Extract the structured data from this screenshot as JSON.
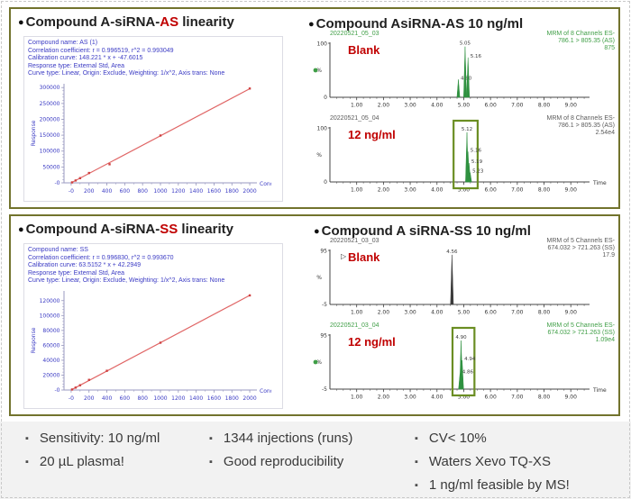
{
  "colors": {
    "panel_border": "#72732d",
    "highlight_red": "#c00000",
    "trace_green": "#2f9140",
    "annotation_green": "#3f9e46",
    "info_blue": "#3b3bc4",
    "fit_line_red": "#e06666",
    "footer_bg": "#f2f2f2"
  },
  "icons": {
    "bullet": "●",
    "cursor": "▷"
  },
  "panels": [
    {
      "left": {
        "title_pre": "Compound A-siRNA-",
        "title_highlight": "AS",
        "title_post": " linearity",
        "info_lines": [
          "Compound name: AS (1)",
          "Correlation coefficient: r = 0.996519, r^2 = 0.993049",
          "Calibration curve: 148.221 * x + -47.6015",
          "Response type: External Std, Area",
          "Curve type: Linear, Origin: Exclude, Weighting: 1/x^2, Axis trans: None"
        ]
      },
      "right": {
        "title_pre": "Compound AsiRNA-AS ",
        "title_bold": "10 ng/ml"
      }
    },
    {
      "left": {
        "title_pre": "Compound A-siRNA-",
        "title_highlight": "SS",
        "title_post": " linearity",
        "info_lines": [
          "Compound name: SS",
          "Correlation coefficient: r = 0.996830, r^2 = 0.993670",
          "Calibration curve: 63.5152 * x + 42.2949",
          "Response type: External Std, Area",
          "Curve type: Linear, Origin: Exclude, Weighting: 1/x^2, Axis trans: None"
        ]
      },
      "right": {
        "title_pre": "Compound A siRNA-SS ",
        "title_bold": "10 ng/ml"
      }
    }
  ],
  "bullets": {
    "col1": [
      "Sensitivity: 10 ng/ml",
      "20 µL plasma!"
    ],
    "col2": [
      "1344 injections (runs)",
      "Good reproducibility"
    ],
    "col3": [
      "CV< 10%",
      "Waters Xevo TQ-XS",
      "1 ng/ml feasible by MS!"
    ]
  },
  "chart_data": [
    {
      "id": "as-linearity",
      "type": "scatter",
      "title": "Compound A-siRNA-AS calibration",
      "xlabel": "Conc",
      "ylabel": "Response",
      "xlim": [
        0,
        2000
      ],
      "ylim": [
        0,
        300000
      ],
      "display_ymax": 312000,
      "xticks": [
        {
          "v": 0,
          "label": "-0"
        },
        {
          "v": 200,
          "label": "200"
        },
        {
          "v": 400,
          "label": "400"
        },
        {
          "v": 600,
          "label": "600"
        },
        {
          "v": 800,
          "label": "800"
        },
        {
          "v": 1000,
          "label": "1000"
        },
        {
          "v": 1200,
          "label": "1200"
        },
        {
          "v": 1400,
          "label": "1400"
        },
        {
          "v": 1600,
          "label": "1600"
        },
        {
          "v": 1800,
          "label": "1800"
        },
        {
          "v": 2000,
          "label": "2000"
        }
      ],
      "yticks": [
        {
          "v": 0,
          "label": "-0"
        },
        {
          "v": 50000,
          "label": "50000"
        },
        {
          "v": 100000,
          "label": "100000"
        },
        {
          "v": 150000,
          "label": "150000"
        },
        {
          "v": 200000,
          "label": "200000"
        },
        {
          "v": 250000,
          "label": "250000"
        },
        {
          "v": 300000,
          "label": "300000"
        }
      ],
      "fit": {
        "slope": 148.221,
        "intercept": -47.6015
      },
      "points": [
        [
          10,
          1400
        ],
        [
          50,
          7400
        ],
        [
          100,
          14800
        ],
        [
          200,
          31000
        ],
        [
          430,
          58500
        ],
        [
          1000,
          149000
        ],
        [
          2000,
          297000
        ]
      ],
      "line_color": "#e06666",
      "point_color": "#cf4040",
      "axis_color": "#9a9ac0",
      "tick_color": "#3b3bc4"
    },
    {
      "id": "ss-linearity",
      "type": "scatter",
      "title": "Compound A-siRNA-SS calibration",
      "xlabel": "Conc",
      "ylabel": "Response",
      "xlim": [
        0,
        2000
      ],
      "ylim": [
        0,
        120000
      ],
      "display_ymax": 133000,
      "xticks": [
        {
          "v": 0,
          "label": "-0"
        },
        {
          "v": 200,
          "label": "200"
        },
        {
          "v": 400,
          "label": "400"
        },
        {
          "v": 600,
          "label": "600"
        },
        {
          "v": 800,
          "label": "800"
        },
        {
          "v": 1000,
          "label": "1000"
        },
        {
          "v": 1200,
          "label": "1200"
        },
        {
          "v": 1400,
          "label": "1400"
        },
        {
          "v": 1600,
          "label": "1600"
        },
        {
          "v": 1800,
          "label": "1800"
        },
        {
          "v": 2000,
          "label": "2000"
        }
      ],
      "yticks": [
        {
          "v": 0,
          "label": "-0"
        },
        {
          "v": 20000,
          "label": "20000"
        },
        {
          "v": 40000,
          "label": "40000"
        },
        {
          "v": 60000,
          "label": "60000"
        },
        {
          "v": 80000,
          "label": "80000"
        },
        {
          "v": 100000,
          "label": "100000"
        },
        {
          "v": 120000,
          "label": "120000"
        }
      ],
      "fit": {
        "slope": 63.5152,
        "intercept": 42.2949
      },
      "points": [
        [
          10,
          680
        ],
        [
          50,
          3220
        ],
        [
          100,
          6400
        ],
        [
          200,
          13600
        ],
        [
          400,
          25800
        ],
        [
          1000,
          63500
        ],
        [
          2000,
          127000
        ]
      ],
      "line_color": "#e06666",
      "point_color": "#cf4040",
      "axis_color": "#9a9ac0",
      "tick_color": "#3b3bc4"
    },
    {
      "id": "as-blank",
      "type": "chromatogram",
      "run": "20220521_05_03",
      "run_color": "#3f9e46",
      "sample": "Blank",
      "y_top": "100",
      "y_bottom": "0",
      "percent_label": "%",
      "annotation": [
        "MRM of 8 Channels ES-",
        "786.1 > 805.35 (AS)",
        "875"
      ],
      "annotation_color": "#3f9e46",
      "trace_color": "#2f9140",
      "peaks": [
        {
          "t": 4.8,
          "h": 0.34,
          "label": "4.80"
        },
        {
          "t": 5.05,
          "h": 0.97,
          "label": "5.05"
        },
        {
          "t": 5.16,
          "h": 0.76,
          "label": "5.16"
        }
      ],
      "box": null,
      "time_label": "",
      "xtick_labels": [
        "1.00",
        "2.00",
        "3.00",
        "4.00",
        "5.00",
        "6.00",
        "7.00",
        "8.00",
        "9.00"
      ],
      "marker_dot": true,
      "cursor": false
    },
    {
      "id": "as-12",
      "type": "chromatogram",
      "run": "20220521_05_04",
      "run_color": "#5a5a5a",
      "sample": "12 ng/ml",
      "y_top": "100",
      "y_bottom": "0",
      "percent_label": "%",
      "annotation": [
        "MRM of 8 Channels ES-",
        "786.1 > 805.35 (AS)",
        "2.54e4"
      ],
      "annotation_color": "#5a5a5a",
      "trace_color": "#2f9140",
      "peaks": [
        {
          "t": 5.12,
          "h": 0.95,
          "label": "5.12"
        },
        {
          "t": 5.16,
          "h": 0.58,
          "label": "5.16"
        },
        {
          "t": 5.2,
          "h": 0.36,
          "label": "5.19"
        },
        {
          "t": 5.24,
          "h": 0.18,
          "label": "5.23"
        }
      ],
      "box": [
        4.62,
        5.52
      ],
      "time_label": "Time",
      "xtick_labels": [
        "1.00",
        "2.00",
        "3.00",
        "4.00",
        "5.00",
        "6.00",
        "7.00",
        "8.00",
        "9.00"
      ],
      "marker_dot": false,
      "cursor": false
    },
    {
      "id": "ss-blank",
      "type": "chromatogram",
      "run": "20220521_03_03",
      "run_color": "#5a5a5a",
      "sample": "Blank",
      "y_top": "95",
      "y_bottom": "-5",
      "percent_label": "%",
      "annotation": [
        "MRM of 5 Channels ES-",
        "674.032 > 721.263 (SS)",
        "17.9"
      ],
      "annotation_color": "#5a5a5a",
      "trace_color": "#3a3a3a",
      "peaks": [
        {
          "t": 4.56,
          "h": 0.95,
          "label": "4.56"
        }
      ],
      "box": null,
      "time_label": "",
      "xtick_labels": [
        "1.00",
        "2.00",
        "3.00",
        "4.00",
        "5.00",
        "6.00",
        "7.00",
        "8.00",
        "9.00"
      ],
      "marker_dot": false,
      "cursor": true
    },
    {
      "id": "ss-12",
      "type": "chromatogram",
      "run": "20220521_03_04",
      "run_color": "#3f9e46",
      "sample": "12 ng/ml",
      "y_top": "95",
      "y_bottom": "-5",
      "percent_label": "%",
      "annotation": [
        "MRM of 5 Channels ES-",
        "674.032 > 721.263 (SS)",
        "1.09e4"
      ],
      "annotation_color": "#3f9e46",
      "trace_color": "#2f9140",
      "peaks": [
        {
          "t": 4.86,
          "h": 0.3,
          "label": "4.86"
        },
        {
          "t": 4.9,
          "h": 0.93,
          "label": "4.90"
        },
        {
          "t": 4.94,
          "h": 0.55,
          "label": "4.94"
        }
      ],
      "box": [
        4.58,
        5.4
      ],
      "time_label": "Time",
      "xtick_labels": [
        "1.00",
        "2.00",
        "3.00",
        "4.00",
        "5.00",
        "6.00",
        "7.00",
        "8.00",
        "9.00"
      ],
      "marker_dot": true,
      "cursor": false
    }
  ]
}
